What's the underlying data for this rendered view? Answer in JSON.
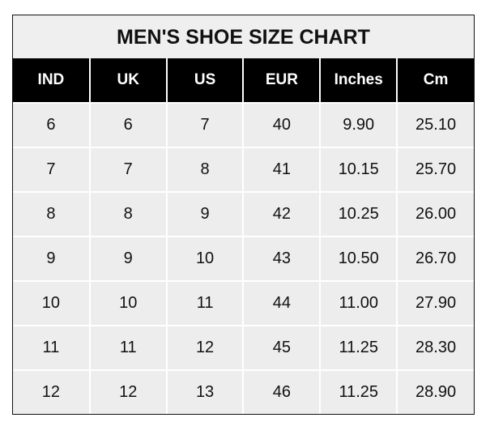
{
  "title": "MEN'S SHOE SIZE CHART",
  "headers": [
    "IND",
    "UK",
    "US",
    "EUR",
    "Inches",
    "Cm"
  ],
  "rows": [
    [
      "6",
      "6",
      "7",
      "40",
      "9.90",
      "25.10"
    ],
    [
      "7",
      "7",
      "8",
      "41",
      "10.15",
      "25.70"
    ],
    [
      "8",
      "8",
      "9",
      "42",
      "10.25",
      "26.00"
    ],
    [
      "9",
      "9",
      "10",
      "43",
      "10.50",
      "26.70"
    ],
    [
      "10",
      "10",
      "11",
      "44",
      "11.00",
      "27.90"
    ],
    [
      "11",
      "11",
      "12",
      "45",
      "11.25",
      "28.30"
    ],
    [
      "12",
      "12",
      "13",
      "46",
      "11.25",
      "28.90"
    ]
  ]
}
